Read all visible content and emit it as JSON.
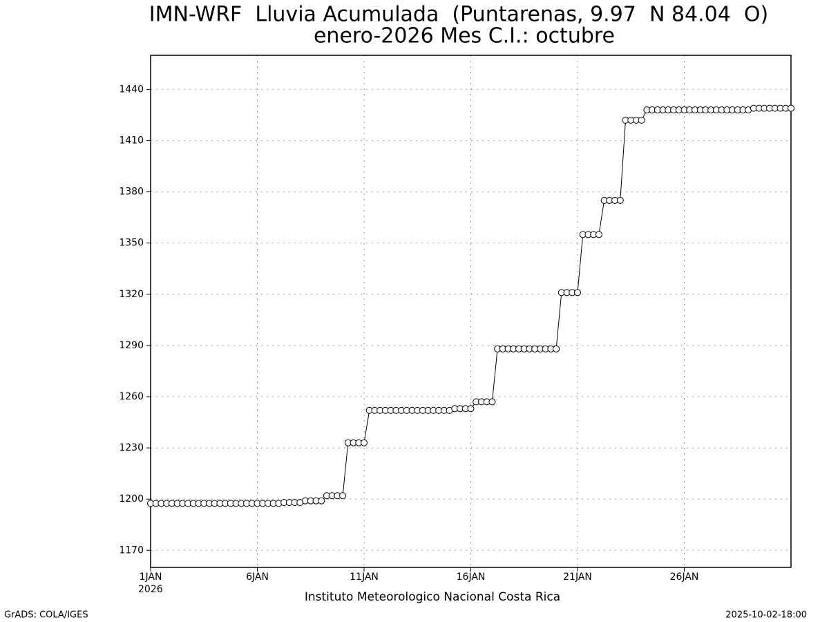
{
  "chart_data": {
    "type": "line",
    "title": "IMN-WRF  Lluvia Acumulada  (Puntarenas, 9.97  N 84.04  O)",
    "subtitle": "enero-2026 Mes C.I.: octubre",
    "x_label": "Instituto Meteorologico Nacional Costa Rica",
    "x_year_label": "2026",
    "footer_left": "GrADS: COLA/IGES",
    "footer_right": "2025-10-02-18:00",
    "x": [
      1,
      1.25,
      1.5,
      1.75,
      2,
      2.25,
      2.5,
      2.75,
      3,
      3.25,
      3.5,
      3.75,
      4,
      4.25,
      4.5,
      4.75,
      5,
      5.25,
      5.5,
      5.75,
      6,
      6.25,
      6.5,
      6.75,
      7,
      7.25,
      7.5,
      7.75,
      8,
      8.25,
      8.5,
      8.75,
      9,
      9.25,
      9.5,
      9.75,
      10,
      10.25,
      10.5,
      10.75,
      11,
      11.25,
      11.5,
      11.75,
      12,
      12.25,
      12.5,
      12.75,
      13,
      13.25,
      13.5,
      13.75,
      14,
      14.25,
      14.5,
      14.75,
      15,
      15.25,
      15.5,
      15.75,
      16,
      16.25,
      16.5,
      16.75,
      17,
      17.25,
      17.5,
      17.75,
      18,
      18.25,
      18.5,
      18.75,
      19,
      19.25,
      19.5,
      19.75,
      20,
      20.25,
      20.5,
      20.75,
      21,
      21.25,
      21.5,
      21.75,
      22,
      22.25,
      22.5,
      22.75,
      23,
      23.25,
      23.5,
      23.75,
      24,
      24.25,
      24.5,
      24.75,
      25,
      25.25,
      25.5,
      25.75,
      26,
      26.25,
      26.5,
      26.75,
      27,
      27.25,
      27.5,
      27.75,
      28,
      28.25,
      28.5,
      28.75,
      29,
      29.25,
      29.5,
      29.75,
      30,
      30.25,
      30.5,
      30.75,
      31
    ],
    "series": [
      {
        "color": "#000000",
        "values": [
          1197.5,
          1197.5,
          1197.5,
          1197.5,
          1197.5,
          1197.5,
          1197.5,
          1197.5,
          1197.5,
          1197.5,
          1197.5,
          1197.5,
          1197.5,
          1197.5,
          1197.5,
          1197.5,
          1197.5,
          1197.5,
          1197.5,
          1197.5,
          1197.5,
          1197.5,
          1197.5,
          1197.5,
          1197.5,
          1198,
          1198,
          1198,
          1198,
          1199,
          1199,
          1199,
          1199,
          1202,
          1202,
          1202,
          1202,
          1233,
          1233,
          1233,
          1233,
          1252,
          1252,
          1252,
          1252,
          1252,
          1252,
          1252,
          1252,
          1252,
          1252,
          1252,
          1252,
          1252,
          1252,
          1252,
          1252,
          1253,
          1253,
          1253,
          1253,
          1257,
          1257,
          1257,
          1257,
          1288,
          1288,
          1288,
          1288,
          1288,
          1288,
          1288,
          1288,
          1288,
          1288,
          1288,
          1288,
          1321,
          1321,
          1321,
          1321,
          1355,
          1355,
          1355,
          1355,
          1375,
          1375,
          1375,
          1375,
          1422,
          1422,
          1422,
          1422,
          1428,
          1428,
          1428,
          1428,
          1428,
          1428,
          1428,
          1428,
          1428,
          1428,
          1428,
          1428,
          1428,
          1428,
          1428,
          1428,
          1428,
          1428,
          1428,
          1428,
          1429,
          1429,
          1429,
          1429,
          1429,
          1429,
          1429,
          1429
        ]
      }
    ],
    "xlim": [
      1,
      31
    ],
    "xticks": [
      {
        "value": 1,
        "label": "1JAN"
      },
      {
        "value": 6,
        "label": "6JAN"
      },
      {
        "value": 11,
        "label": "11JAN"
      },
      {
        "value": 16,
        "label": "16JAN"
      },
      {
        "value": 21,
        "label": "21JAN"
      },
      {
        "value": 26,
        "label": "26JAN"
      }
    ],
    "ylim": [
      1160,
      1460
    ],
    "yticks": [
      1170,
      1200,
      1230,
      1260,
      1290,
      1320,
      1350,
      1380,
      1410,
      1440
    ],
    "grid": true
  }
}
